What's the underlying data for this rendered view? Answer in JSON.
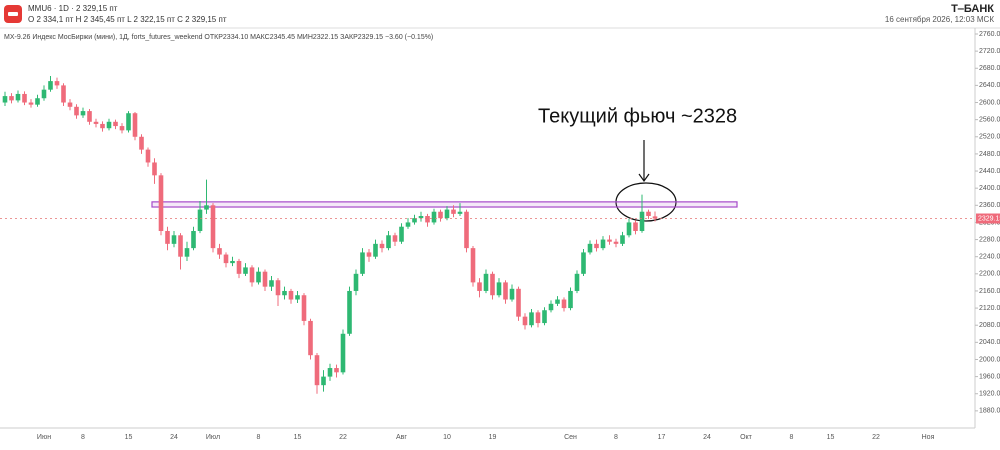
{
  "header": {
    "symbol": "MMU6 · 1D · 2 329,15 пт",
    "ohlc_line": "O 2 334,1 пт H 2 345,45 пт L 2 322,15 пт C 2 329,15 пт",
    "brand": "T‒БАНК",
    "timestamp": "16 сентября 2026, 12:03 МСК"
  },
  "chart_data": {
    "type": "candlestick",
    "legend_text": "MX-9.26 Индекс МосБиржи (мини), 1Д, forts_futures_weekend ОТКР2334.10 МАКС2345.45 МИН2322.15 ЗАКР2329.15 −3.60 (−0.15%)",
    "annotation": "Текущий фьюч ~2328",
    "up_color": "#2eb872",
    "down_color": "#ef6b7b",
    "zone_color": "#a64ac9",
    "zone": [
      2356,
      2368
    ],
    "ylim": [
      1840,
      2774
    ],
    "yticks": [
      {
        "value": 1880,
        "label": "1880.00"
      },
      {
        "value": 1920,
        "label": "1920.00"
      },
      {
        "value": 1960,
        "label": "1960.00"
      },
      {
        "value": 2000,
        "label": "2000.00"
      },
      {
        "value": 2040,
        "label": "2040.00"
      },
      {
        "value": 2080,
        "label": "2080.00"
      },
      {
        "value": 2120,
        "label": "2120.00"
      },
      {
        "value": 2160,
        "label": "2160.00"
      },
      {
        "value": 2200,
        "label": "2200.00"
      },
      {
        "value": 2240,
        "label": "2240.00"
      },
      {
        "value": 2280,
        "label": "2280.00"
      },
      {
        "value": 2320,
        "label": "2320.00"
      },
      {
        "value": 2360,
        "label": "2360.00"
      },
      {
        "value": 2400,
        "label": "2400.00"
      },
      {
        "value": 2440,
        "label": "2440.00"
      },
      {
        "value": 2480,
        "label": "2480.00"
      },
      {
        "value": 2520,
        "label": "2520.00"
      },
      {
        "value": 2560,
        "label": "2560.00"
      },
      {
        "value": 2600,
        "label": "2600.00"
      },
      {
        "value": 2640,
        "label": "2640.00"
      },
      {
        "value": 2680,
        "label": "2680.00"
      },
      {
        "value": 2720,
        "label": "2720.00"
      },
      {
        "value": 2760,
        "label": "2760.00"
      }
    ],
    "categories": [
      null,
      null,
      null,
      null,
      null,
      null,
      "Июн",
      null,
      null,
      null,
      null,
      null,
      "8",
      null,
      null,
      null,
      null,
      null,
      null,
      "15",
      null,
      null,
      null,
      null,
      null,
      null,
      "24",
      null,
      null,
      null,
      null,
      null,
      "Июл",
      null,
      null,
      null,
      null,
      null,
      null,
      "8",
      null,
      null,
      null,
      null,
      null,
      "15",
      null,
      null,
      null,
      null,
      null,
      null,
      "22",
      null,
      null,
      null,
      null,
      null,
      null,
      null,
      null,
      "Авг",
      null,
      null,
      null,
      null,
      null,
      null,
      "10",
      null,
      null,
      null,
      null,
      null,
      null,
      "19",
      null,
      null,
      null,
      null,
      null,
      null,
      null,
      null,
      null,
      null,
      null,
      "Сен",
      null,
      null,
      null,
      null,
      null,
      null,
      "8",
      null,
      null,
      null,
      null,
      null,
      null,
      "17",
      null,
      null,
      null,
      null,
      null,
      null,
      "24",
      null,
      null,
      null,
      null,
      null,
      "Окт",
      null,
      null,
      null,
      null,
      null,
      null,
      "8",
      null,
      null,
      null,
      null,
      null,
      "15",
      null,
      null,
      null,
      null,
      null,
      null,
      "22",
      null,
      null,
      null,
      null,
      null,
      null,
      null,
      "Ноя",
      null,
      null
    ],
    "open": [
      2600,
      2615,
      2605,
      2620,
      2600,
      2595,
      2610,
      2630,
      2650,
      2640,
      2600,
      2590,
      2570,
      2580,
      2555,
      2550,
      2540,
      2555,
      2545,
      2535,
      2575,
      2520,
      2490,
      2460,
      2430,
      2300,
      2270,
      2290,
      2240,
      2260,
      2300,
      2350,
      2360,
      2260,
      2245,
      2225,
      2230,
      2200,
      2215,
      2180,
      2205,
      2170,
      2185,
      2150,
      2160,
      2140,
      2150,
      2090,
      2010,
      1940,
      1960,
      1980,
      1970,
      2060,
      2160,
      2200,
      2250,
      2240,
      2270,
      2260,
      2290,
      2275,
      2310,
      2320,
      2330,
      2335,
      2320,
      2345,
      2330,
      2350,
      2340,
      2345,
      2260,
      2180,
      2160,
      2200,
      2150,
      2180,
      2140,
      2165,
      2100,
      2080,
      2110,
      2085,
      2115,
      2130,
      2140,
      2120,
      2160,
      2200,
      2250,
      2270,
      2260,
      2280,
      2275,
      2270,
      2290,
      2320,
      2300,
      2345,
      2334.1,
      null,
      null,
      null,
      null,
      null,
      null,
      null,
      null,
      null,
      null,
      null,
      null,
      null,
      null,
      null,
      null,
      null,
      null,
      null,
      null,
      null,
      null,
      null,
      null,
      null,
      null,
      null,
      null,
      null,
      null,
      null,
      null,
      null,
      null,
      null,
      null,
      null,
      null,
      null,
      null,
      null,
      null,
      null,
      null
    ],
    "high": [
      2625,
      2622,
      2628,
      2626,
      2608,
      2618,
      2640,
      2662,
      2658,
      2645,
      2608,
      2596,
      2588,
      2585,
      2562,
      2556,
      2562,
      2560,
      2552,
      2580,
      2578,
      2526,
      2495,
      2470,
      2435,
      2310,
      2300,
      2295,
      2275,
      2310,
      2370,
      2420,
      2365,
      2270,
      2250,
      2240,
      2235,
      2225,
      2220,
      2215,
      2210,
      2195,
      2190,
      2170,
      2165,
      2160,
      2155,
      2095,
      2015,
      1975,
      1990,
      1988,
      2070,
      2170,
      2210,
      2260,
      2258,
      2280,
      2278,
      2300,
      2296,
      2318,
      2330,
      2338,
      2345,
      2340,
      2352,
      2350,
      2358,
      2360,
      2365,
      2350,
      2265,
      2190,
      2210,
      2205,
      2190,
      2185,
      2175,
      2170,
      2108,
      2118,
      2115,
      2122,
      2138,
      2148,
      2145,
      2168,
      2208,
      2258,
      2278,
      2280,
      2288,
      2290,
      2282,
      2298,
      2328,
      2325,
      2385,
      2350,
      2345.45,
      null,
      null,
      null,
      null,
      null,
      null,
      null,
      null,
      null,
      null,
      null,
      null,
      null,
      null,
      null,
      null,
      null,
      null,
      null,
      null,
      null,
      null,
      null,
      null,
      null,
      null,
      null,
      null,
      null,
      null,
      null,
      null,
      null,
      null,
      null,
      null,
      null,
      null,
      null,
      null,
      null,
      null,
      null,
      null
    ],
    "low": [
      2592,
      2598,
      2600,
      2594,
      2588,
      2590,
      2604,
      2625,
      2632,
      2592,
      2582,
      2562,
      2564,
      2548,
      2542,
      2532,
      2535,
      2538,
      2528,
      2530,
      2512,
      2480,
      2450,
      2410,
      2290,
      2255,
      2262,
      2210,
      2230,
      2255,
      2295,
      2340,
      2250,
      2235,
      2215,
      2218,
      2190,
      2195,
      2170,
      2175,
      2160,
      2160,
      2125,
      2140,
      2130,
      2132,
      2080,
      2000,
      1920,
      1925,
      1950,
      1958,
      1965,
      2055,
      2150,
      2195,
      2228,
      2235,
      2250,
      2255,
      2265,
      2270,
      2305,
      2315,
      2322,
      2310,
      2315,
      2322,
      2325,
      2332,
      2335,
      2250,
      2170,
      2145,
      2155,
      2140,
      2145,
      2130,
      2135,
      2090,
      2070,
      2075,
      2075,
      2080,
      2110,
      2125,
      2112,
      2115,
      2155,
      2195,
      2245,
      2252,
      2255,
      2268,
      2262,
      2265,
      2285,
      2292,
      2296,
      2328,
      2322.15,
      null,
      null,
      null,
      null,
      null,
      null,
      null,
      null,
      null,
      null,
      null,
      null,
      null,
      null,
      null,
      null,
      null,
      null,
      null,
      null,
      null,
      null,
      null,
      null,
      null,
      null,
      null,
      null,
      null,
      null,
      null,
      null,
      null,
      null,
      null,
      null,
      null,
      null,
      null,
      null,
      null,
      null,
      null,
      null
    ],
    "close": [
      2615,
      2605,
      2620,
      2600,
      2595,
      2610,
      2630,
      2650,
      2640,
      2600,
      2590,
      2570,
      2580,
      2555,
      2550,
      2540,
      2555,
      2545,
      2535,
      2575,
      2520,
      2490,
      2460,
      2430,
      2300,
      2270,
      2290,
      2240,
      2260,
      2300,
      2350,
      2360,
      2260,
      2245,
      2225,
      2230,
      2200,
      2215,
      2180,
      2205,
      2170,
      2185,
      2150,
      2160,
      2140,
      2150,
      2090,
      2010,
      1940,
      1960,
      1980,
      1970,
      2060,
      2160,
      2200,
      2250,
      2240,
      2270,
      2260,
      2290,
      2275,
      2310,
      2320,
      2330,
      2335,
      2320,
      2345,
      2330,
      2350,
      2340,
      2345,
      2260,
      2180,
      2160,
      2200,
      2150,
      2180,
      2140,
      2165,
      2100,
      2080,
      2110,
      2085,
      2115,
      2130,
      2140,
      2120,
      2160,
      2200,
      2250,
      2270,
      2260,
      2280,
      2275,
      2270,
      2290,
      2320,
      2300,
      2345,
      2335,
      2329.15,
      null,
      null,
      null,
      null,
      null,
      null,
      null,
      null,
      null,
      null,
      null,
      null,
      null,
      null,
      null,
      null,
      null,
      null,
      null,
      null,
      null,
      null,
      null,
      null,
      null,
      null,
      null,
      null,
      null,
      null,
      null,
      null,
      null,
      null,
      null,
      null,
      null,
      null,
      null,
      null,
      null,
      null,
      null,
      null
    ]
  }
}
